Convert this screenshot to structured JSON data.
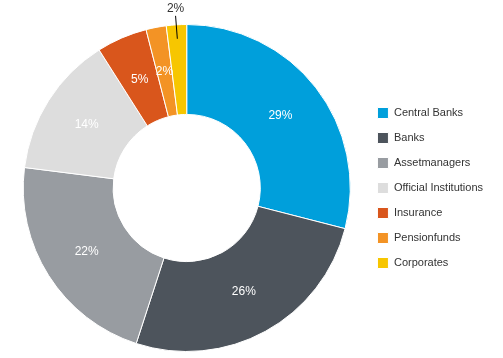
{
  "chart_data": {
    "type": "doughnut",
    "categories": [
      "Central Banks",
      "Banks",
      "Assetmanagers",
      "Official Institutions",
      "Insurance",
      "Pensionfunds",
      "Corporates"
    ],
    "values": [
      29,
      26,
      22,
      14,
      5,
      2,
      2
    ],
    "value_labels": [
      "29%",
      "26%",
      "22%",
      "14%",
      "5%",
      "2%",
      "2%"
    ],
    "colors": [
      "#009fdb",
      "#4d545c",
      "#989ca1",
      "#dddddd",
      "#d9561c",
      "#f39325",
      "#f7c600"
    ],
    "legend": "right",
    "data_labels": true
  }
}
